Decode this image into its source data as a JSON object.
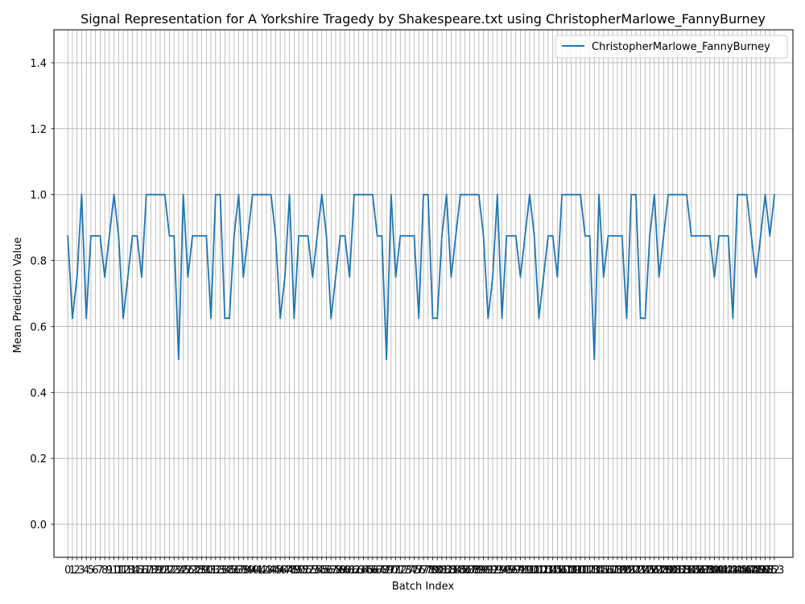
{
  "chart_data": {
    "type": "line",
    "title": "Signal Representation for A Yorkshire Tragedy by Shakespeare.txt using ChristopherMarlowe_FannyBurney",
    "xlabel": "Batch Index",
    "ylabel": "Mean Prediction Value",
    "ylim": [
      -0.1,
      1.5
    ],
    "xlim": [
      -3,
      157
    ],
    "y_ticks": [
      "0.0",
      "0.2",
      "0.4",
      "0.6",
      "0.8",
      "1.0",
      "1.2",
      "1.4"
    ],
    "grid": true,
    "legend_position": "top-right",
    "series": [
      {
        "name": "ChristopherMarlowe_FannyBurney",
        "color": "#1f77b4",
        "values": [
          0.875,
          0.625,
          0.75,
          1.0,
          0.625,
          0.875,
          0.875,
          0.875,
          0.75,
          0.875,
          1.0,
          0.875,
          0.625,
          0.75,
          0.875,
          0.875,
          0.75,
          1.0,
          1.0,
          1.0,
          1.0,
          1.0,
          0.875,
          0.875,
          0.5,
          1.0,
          0.75,
          0.875,
          0.875,
          0.875,
          0.875,
          0.625,
          1.0,
          1.0,
          0.625,
          0.625,
          0.875,
          1.0,
          0.75,
          0.875,
          1.0,
          1.0,
          1.0,
          1.0,
          1.0,
          0.875,
          0.625,
          0.75,
          1.0,
          0.625,
          0.875,
          0.875,
          0.875,
          0.75,
          0.875,
          1.0,
          0.875,
          0.625,
          0.75,
          0.875,
          0.875,
          0.75,
          1.0,
          1.0,
          1.0,
          1.0,
          1.0,
          0.875,
          0.875,
          0.5,
          1.0,
          0.75,
          0.875,
          0.875,
          0.875,
          0.875,
          0.625,
          1.0,
          1.0,
          0.625,
          0.625,
          0.875,
          1.0,
          0.75,
          0.875,
          1.0,
          1.0,
          1.0,
          1.0,
          1.0,
          0.875,
          0.625,
          0.75,
          1.0,
          0.625,
          0.875,
          0.875,
          0.875,
          0.75,
          0.875,
          1.0,
          0.875,
          0.625,
          0.75,
          0.875,
          0.875,
          0.75,
          1.0,
          1.0,
          1.0,
          1.0,
          1.0,
          0.875,
          0.875,
          0.5,
          1.0,
          0.75,
          0.875,
          0.875,
          0.875,
          0.875,
          0.625,
          1.0,
          1.0,
          0.625,
          0.625,
          0.875,
          1.0,
          0.75,
          0.875,
          1.0,
          1.0,
          1.0,
          1.0,
          1.0,
          0.875,
          0.875,
          0.875,
          0.875,
          0.875,
          0.75,
          0.875,
          0.875,
          0.875,
          0.625,
          1.0,
          1.0,
          1.0,
          0.875,
          0.75,
          0.875,
          1.0,
          0.875,
          1.0
        ]
      }
    ]
  }
}
